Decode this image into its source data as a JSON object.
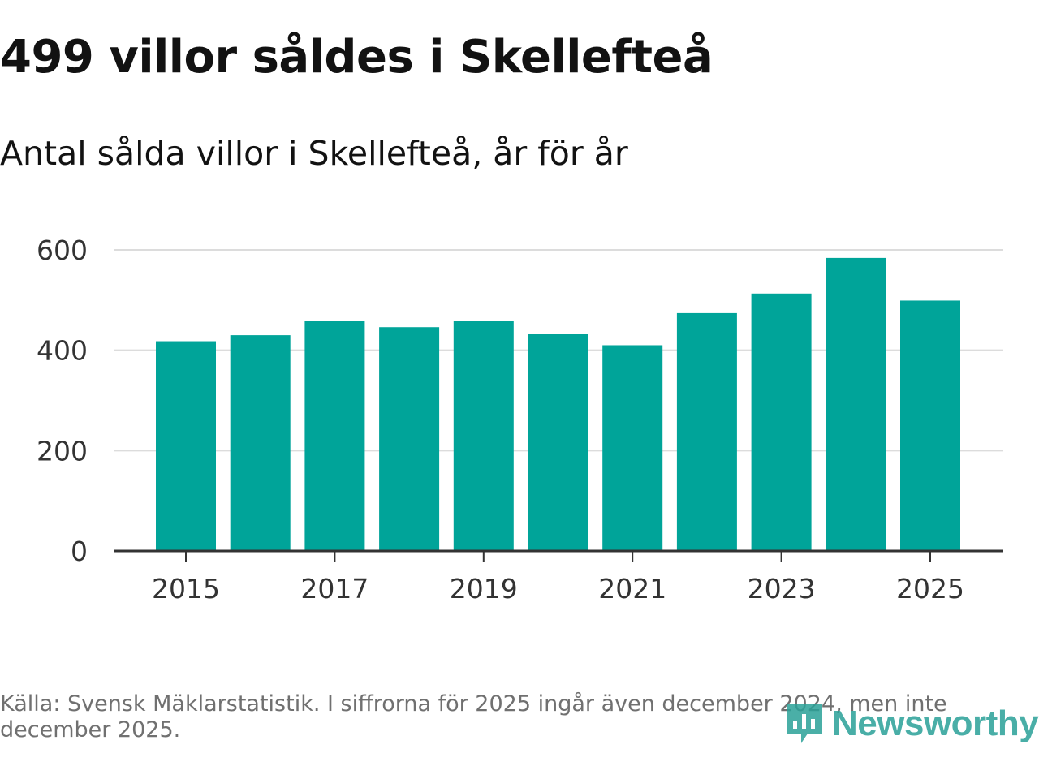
{
  "header": {
    "title": "499 villor såldes i Skellefteå",
    "subtitle": "Antal sålda villor i Skellefteå, år för år"
  },
  "footer": {
    "source_note": "Källa: Svensk Mäklarstatistik. I siffrorna för 2025 ingår även december 2024, men inte december 2025.",
    "logo_text": "Newsworthy"
  },
  "colors": {
    "bar": "#00a499",
    "grid": "#dcdcdc",
    "axis": "#333333",
    "logo": "#2aa198"
  },
  "chart_data": {
    "type": "bar",
    "title": "499 villor såldes i Skellefteå",
    "subtitle": "Antal sålda villor i Skellefteå, år för år",
    "xlabel": "",
    "ylabel": "",
    "categories": [
      "2015",
      "2016",
      "2017",
      "2018",
      "2019",
      "2020",
      "2021",
      "2022",
      "2023",
      "2024",
      "2025"
    ],
    "values": [
      418,
      430,
      458,
      446,
      458,
      433,
      410,
      474,
      513,
      584,
      499
    ],
    "ylim": [
      0,
      600
    ],
    "y_ticks": [
      0,
      200,
      400,
      600
    ],
    "x_tick_labels": [
      "2015",
      "2017",
      "2019",
      "2021",
      "2023",
      "2025"
    ],
    "grid": true,
    "legend": "none"
  }
}
